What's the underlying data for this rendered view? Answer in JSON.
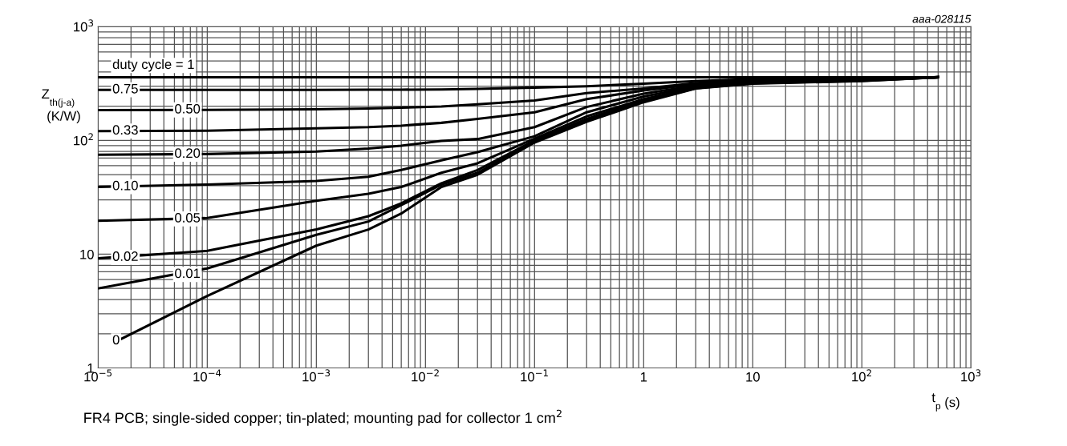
{
  "chart_data": {
    "type": "line",
    "xlabel": "t$_{p}$ (s)",
    "ylabel": "Z$_{th(j-a)}$\n(K/W)",
    "annotations": [
      "aaa-028115",
      "FR4 PCB; single-sided copper; tin-plated; mounting pad for collector 1 cm$^{2}$"
    ],
    "log": "xy",
    "grid": true,
    "legend": false,
    "marker": "none",
    "line_style": "solid",
    "xlim": [
      1e-05,
      1000
    ],
    "ylim": [
      1,
      1000
    ],
    "xticks": [
      {
        "value": 1e-05,
        "label": "10$^{−5}$"
      },
      {
        "value": 0.0001,
        "label": "10$^{−4}$"
      },
      {
        "value": 0.001,
        "label": "10$^{−3}$"
      },
      {
        "value": 0.01,
        "label": "10$^{−2}$"
      },
      {
        "value": 0.1,
        "label": "10$^{−1}$"
      },
      1,
      10,
      {
        "value": 100,
        "label": "10$^{2}$"
      },
      {
        "value": 1000,
        "label": "10$^{3}$"
      }
    ],
    "yticks": [
      1,
      10,
      {
        "value": 100,
        "label": "10$^{2}$"
      },
      {
        "value": 1000,
        "label": "10$^{3}$"
      }
    ],
    "x": [
      1e-05,
      0.0001,
      0.001,
      0.003,
      0.006,
      0.014,
      0.03,
      0.1,
      0.3,
      1,
      3,
      10,
      100,
      500
    ],
    "series": [
      {
        "name": "duty cycle = 1",
        "color": "#000000",
        "values": [
          360,
          360,
          360,
          360,
          360,
          360,
          360,
          360,
          360,
          360,
          360,
          360,
          360,
          360
        ]
      },
      {
        "name": "0.75",
        "color": "#000000",
        "values": [
          279,
          279,
          279,
          280,
          280,
          281,
          284,
          292,
          300,
          316,
          333,
          346,
          356,
          360
        ]
      },
      {
        "name": "0.50",
        "color": "#000000",
        "values": [
          185,
          186,
          188,
          191,
          194,
          199,
          208,
          225,
          261,
          287,
          320,
          340,
          352,
          360
        ]
      },
      {
        "name": "0.33",
        "color": "#000000",
        "values": [
          121,
          122,
          128,
          131,
          135,
          143,
          155,
          177,
          231,
          275,
          312,
          335,
          349,
          360
        ]
      },
      {
        "name": "0.20",
        "color": "#000000",
        "values": [
          75,
          76,
          80,
          85,
          90,
          99,
          103,
          131,
          197,
          258,
          305,
          331,
          346,
          360
        ]
      },
      {
        "name": "0.10",
        "color": "#000000",
        "values": [
          39,
          41,
          44,
          48,
          55,
          67,
          79,
          109,
          177,
          244,
          298,
          327,
          343,
          360
        ]
      },
      {
        "name": "0.05",
        "color": "#000000",
        "values": [
          19.7,
          20.8,
          29.5,
          34,
          39,
          52,
          63,
          104,
          163,
          231,
          293,
          323,
          340,
          360
        ]
      },
      {
        "name": "0.02",
        "color": "#000000",
        "values": [
          9.2,
          10.7,
          16.5,
          21.6,
          28,
          42,
          55,
          100,
          155,
          225,
          290,
          320,
          337,
          360
        ]
      },
      {
        "name": "0.01",
        "color": "#000000",
        "values": [
          5.0,
          7.5,
          14.8,
          19.4,
          27,
          41,
          52,
          98,
          150,
          221,
          288,
          318,
          335,
          360
        ]
      },
      {
        "name": "0",
        "color": "#000000",
        "x": [
          1.5e-05,
          0.0001,
          0.001,
          0.003,
          0.006,
          0.014,
          0.03,
          0.1,
          0.3,
          1,
          3,
          10,
          100,
          500
        ],
        "values": [
          1.73,
          4.3,
          11.9,
          16.5,
          22.8,
          39,
          50,
          96,
          146,
          217,
          287,
          316,
          333,
          360
        ]
      }
    ]
  }
}
